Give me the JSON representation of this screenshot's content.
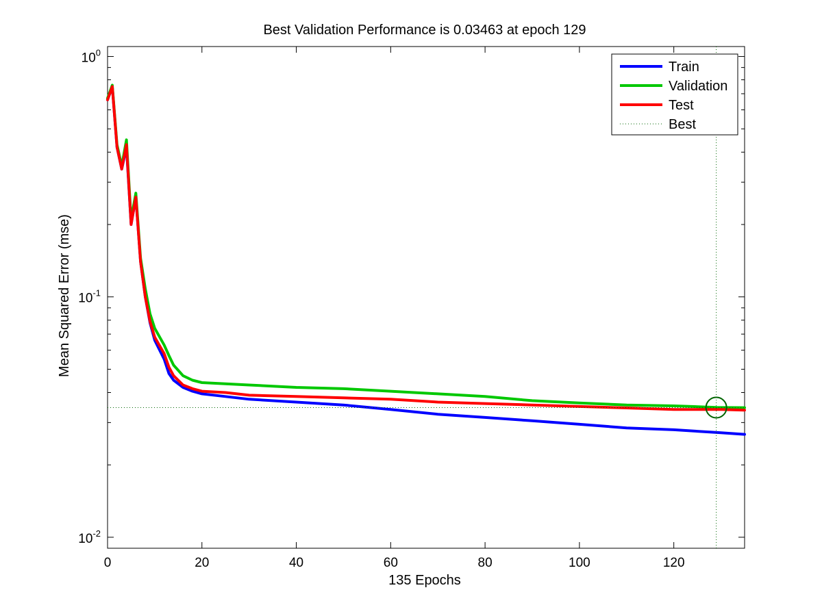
{
  "chart_data": {
    "type": "line",
    "title": "Best Validation Performance is 0.03463 at epoch 129",
    "xlabel": "135 Epochs",
    "ylabel": "Mean Squared Error  (mse)",
    "xlim": [
      0,
      135
    ],
    "ylim": [
      0.009,
      1.1
    ],
    "yscale": "log",
    "xticks": [
      0,
      20,
      40,
      60,
      80,
      100,
      120
    ],
    "xtick_labels": [
      "0",
      "20",
      "40",
      "60",
      "80",
      "100",
      "120"
    ],
    "yticks": [
      {
        "value": 1,
        "base": "10",
        "exp": "0"
      },
      {
        "value": 0.1,
        "base": "10",
        "exp": "-1"
      },
      {
        "value": 0.01,
        "base": "10",
        "exp": "-2"
      }
    ],
    "grid": false,
    "legend_position": "top-right",
    "series": [
      {
        "name": "Train",
        "color": "#0000ff",
        "style": "solid",
        "points": [
          [
            0,
            0.66
          ],
          [
            1,
            0.75
          ],
          [
            2,
            0.42
          ],
          [
            3,
            0.34
          ],
          [
            4,
            0.42
          ],
          [
            5,
            0.2
          ],
          [
            6,
            0.26
          ],
          [
            7,
            0.14
          ],
          [
            8,
            0.1
          ],
          [
            9,
            0.078
          ],
          [
            10,
            0.066
          ],
          [
            12,
            0.055
          ],
          [
            13,
            0.048
          ],
          [
            14,
            0.045
          ],
          [
            16,
            0.042
          ],
          [
            18,
            0.0405
          ],
          [
            20,
            0.0395
          ],
          [
            25,
            0.0385
          ],
          [
            30,
            0.0375
          ],
          [
            40,
            0.0365
          ],
          [
            50,
            0.0355
          ],
          [
            60,
            0.034
          ],
          [
            70,
            0.0325
          ],
          [
            80,
            0.0315
          ],
          [
            90,
            0.0305
          ],
          [
            100,
            0.0295
          ],
          [
            110,
            0.0285
          ],
          [
            120,
            0.028
          ],
          [
            130,
            0.0272
          ],
          [
            135,
            0.0268
          ]
        ]
      },
      {
        "name": "Validation",
        "color": "#00c800",
        "style": "solid",
        "points": [
          [
            0,
            0.67
          ],
          [
            1,
            0.76
          ],
          [
            2,
            0.43
          ],
          [
            3,
            0.35
          ],
          [
            4,
            0.45
          ],
          [
            5,
            0.21
          ],
          [
            6,
            0.27
          ],
          [
            7,
            0.145
          ],
          [
            8,
            0.108
          ],
          [
            9,
            0.085
          ],
          [
            10,
            0.074
          ],
          [
            12,
            0.063
          ],
          [
            13,
            0.057
          ],
          [
            14,
            0.052
          ],
          [
            16,
            0.047
          ],
          [
            18,
            0.045
          ],
          [
            20,
            0.044
          ],
          [
            30,
            0.043
          ],
          [
            40,
            0.042
          ],
          [
            50,
            0.0415
          ],
          [
            60,
            0.0405
          ],
          [
            70,
            0.0395
          ],
          [
            80,
            0.0385
          ],
          [
            90,
            0.037
          ],
          [
            100,
            0.0362
          ],
          [
            110,
            0.0355
          ],
          [
            120,
            0.0352
          ],
          [
            129,
            0.0347
          ],
          [
            135,
            0.0346
          ]
        ]
      },
      {
        "name": "Test",
        "color": "#ff0000",
        "style": "solid",
        "points": [
          [
            0,
            0.66
          ],
          [
            1,
            0.75
          ],
          [
            2,
            0.42
          ],
          [
            3,
            0.34
          ],
          [
            4,
            0.43
          ],
          [
            5,
            0.2
          ],
          [
            6,
            0.26
          ],
          [
            7,
            0.14
          ],
          [
            8,
            0.1
          ],
          [
            9,
            0.079
          ],
          [
            10,
            0.068
          ],
          [
            12,
            0.058
          ],
          [
            13,
            0.051
          ],
          [
            14,
            0.047
          ],
          [
            16,
            0.043
          ],
          [
            18,
            0.0415
          ],
          [
            20,
            0.0405
          ],
          [
            25,
            0.04
          ],
          [
            30,
            0.039
          ],
          [
            40,
            0.0385
          ],
          [
            50,
            0.038
          ],
          [
            60,
            0.0375
          ],
          [
            70,
            0.0365
          ],
          [
            80,
            0.036
          ],
          [
            90,
            0.0355
          ],
          [
            100,
            0.035
          ],
          [
            110,
            0.0345
          ],
          [
            120,
            0.034
          ],
          [
            130,
            0.034
          ],
          [
            135,
            0.0338
          ]
        ]
      },
      {
        "name": "Best",
        "color": "#006400",
        "style": "dotted",
        "x": 129,
        "y": 0.03463
      }
    ]
  }
}
